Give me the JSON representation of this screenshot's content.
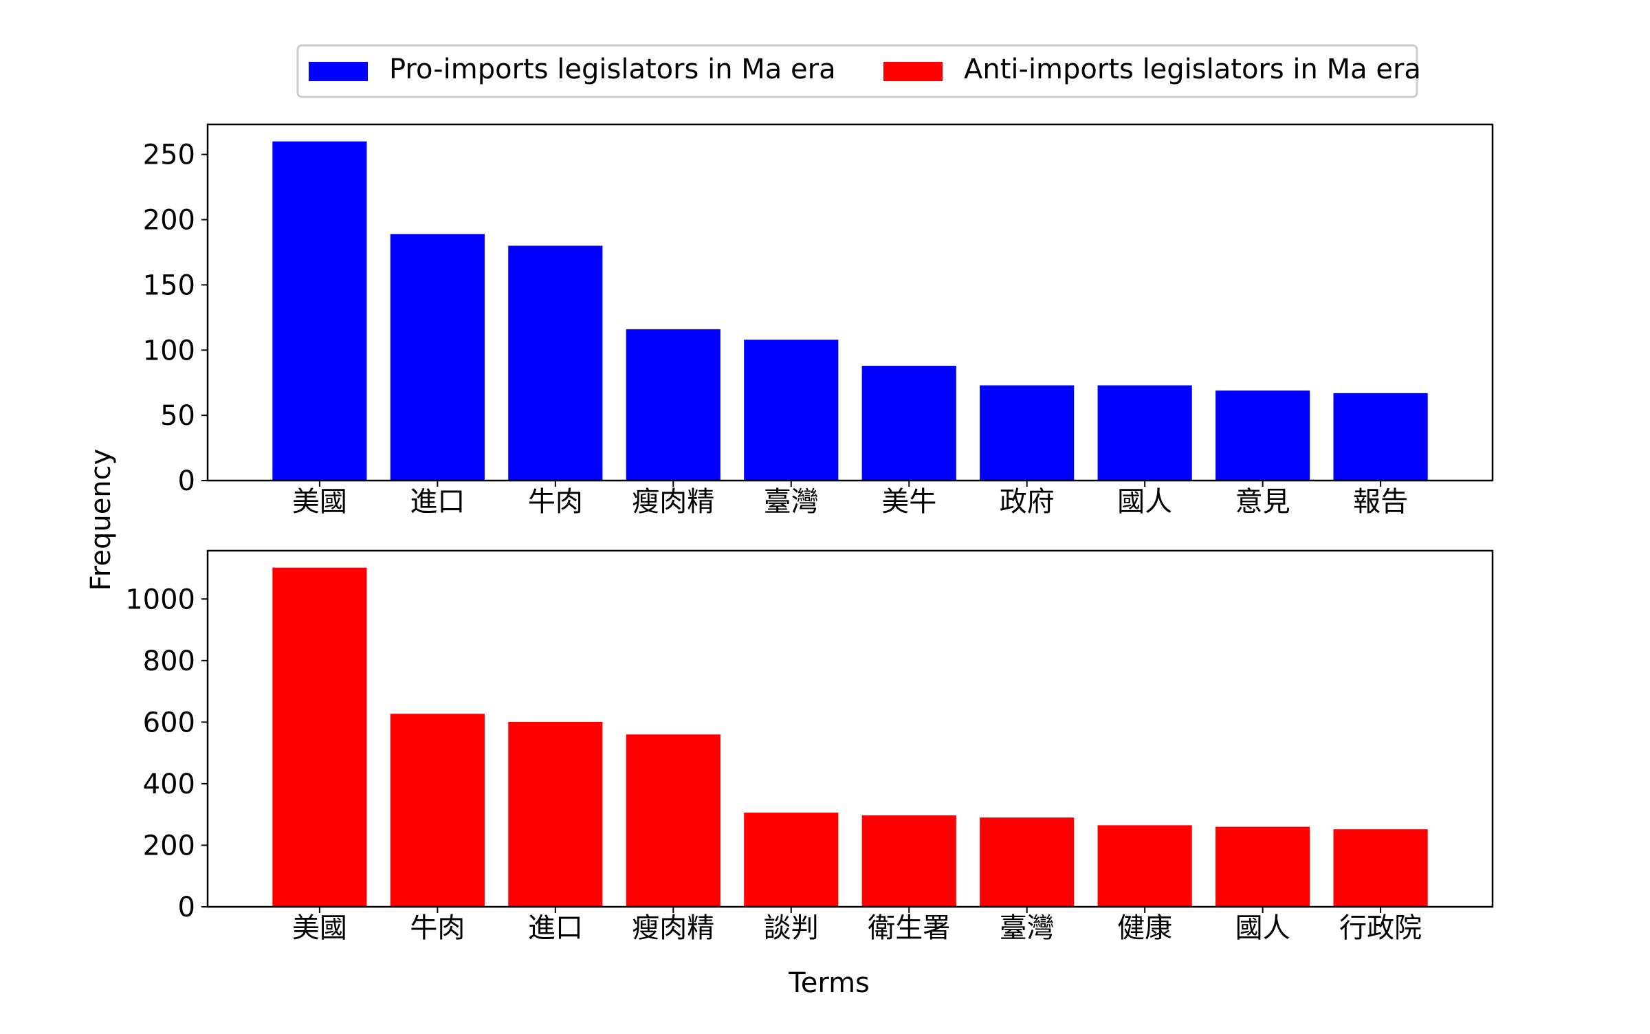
{
  "chart_data": {
    "type": "bar",
    "xlabel": "Terms",
    "ylabel": "Frequency",
    "legend": {
      "placement": "top-center",
      "entries": [
        {
          "label": "Pro-imports legislators in Ma era",
          "color": "#0000ff"
        },
        {
          "label": "Anti-imports legislators in Ma era",
          "color": "#ff0000"
        }
      ]
    },
    "panels": [
      {
        "series_name": "Pro-imports legislators in Ma era",
        "color": "#0000ff",
        "categories": [
          "美國",
          "進口",
          "牛肉",
          "瘦肉精",
          "臺灣",
          "美牛",
          "政府",
          "國人",
          "意見",
          "報告"
        ],
        "values": [
          260,
          189,
          180,
          116,
          108,
          88,
          73,
          73,
          69,
          67
        ],
        "ylim": [
          0,
          273
        ],
        "yticks": [
          0,
          50,
          100,
          150,
          200,
          250
        ]
      },
      {
        "series_name": "Anti-imports legislators in Ma era",
        "color": "#ff0000",
        "categories": [
          "美國",
          "牛肉",
          "進口",
          "瘦肉精",
          "談判",
          "衛生署",
          "臺灣",
          "健康",
          "國人",
          "行政院"
        ],
        "values": [
          1102,
          627,
          601,
          560,
          306,
          297,
          290,
          265,
          260,
          252
        ],
        "ylim": [
          0,
          1157
        ],
        "yticks": [
          0,
          200,
          400,
          600,
          800,
          1000
        ]
      }
    ]
  }
}
